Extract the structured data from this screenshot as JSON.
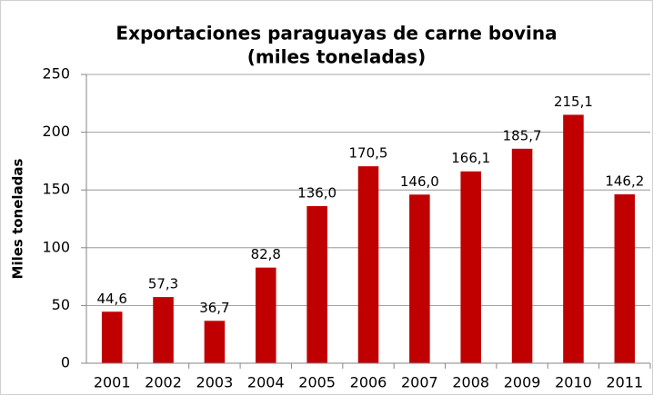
{
  "chart_data": {
    "type": "bar",
    "title": "Exportaciones paraguayas de carne bovina",
    "subtitle": "(miles toneladas)",
    "y_label": "Miles toneladas",
    "categories": [
      "2001",
      "2002",
      "2003",
      "2004",
      "2005",
      "2006",
      "2007",
      "2008",
      "2009",
      "2010",
      "2011"
    ],
    "values": [
      44.6,
      57.3,
      36.7,
      82.8,
      136.0,
      170.5,
      146.0,
      166.1,
      185.7,
      215.1,
      146.2
    ],
    "value_labels": [
      "44,6",
      "57,3",
      "36,7",
      "82,8",
      "136,0",
      "170,5",
      "146,0",
      "166,1",
      "185,7",
      "215,1",
      "146,2"
    ],
    "color": "#c00000",
    "ylim": [
      0,
      250
    ],
    "yticks": [
      0,
      50,
      100,
      150,
      200,
      250
    ],
    "grid": true
  }
}
